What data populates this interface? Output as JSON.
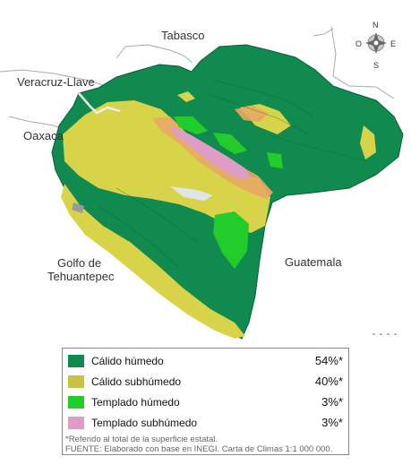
{
  "map": {
    "places": {
      "tabasco": "Tabasco",
      "veracruz": "Veracruz-Llave",
      "oaxaca": "Oaxaca",
      "golfo_line1": "Golfo de",
      "golfo_line2": "Tehuantepec",
      "guatemala": "Guatemala"
    },
    "compass": {
      "n": "N",
      "s": "S",
      "e": "E",
      "o": "O"
    }
  },
  "legend": {
    "items": [
      {
        "label": "Cálido húmedo",
        "percent": "54%*",
        "color": "#118a4f"
      },
      {
        "label": "Cálido subhúmedo",
        "percent": "40%*",
        "color": "#c8c341"
      },
      {
        "label": "Templado húmedo",
        "percent": "3%*",
        "color": "#22cc2a"
      },
      {
        "label": "Templado subhúmedo",
        "percent": "3%*",
        "color": "#df9dc6"
      }
    ],
    "footnote": "*Referido al total de la superficie estatal.",
    "source": "FUENTE: Elaborado con base en INEGI. Carta de Climas 1:1 000 000."
  }
}
